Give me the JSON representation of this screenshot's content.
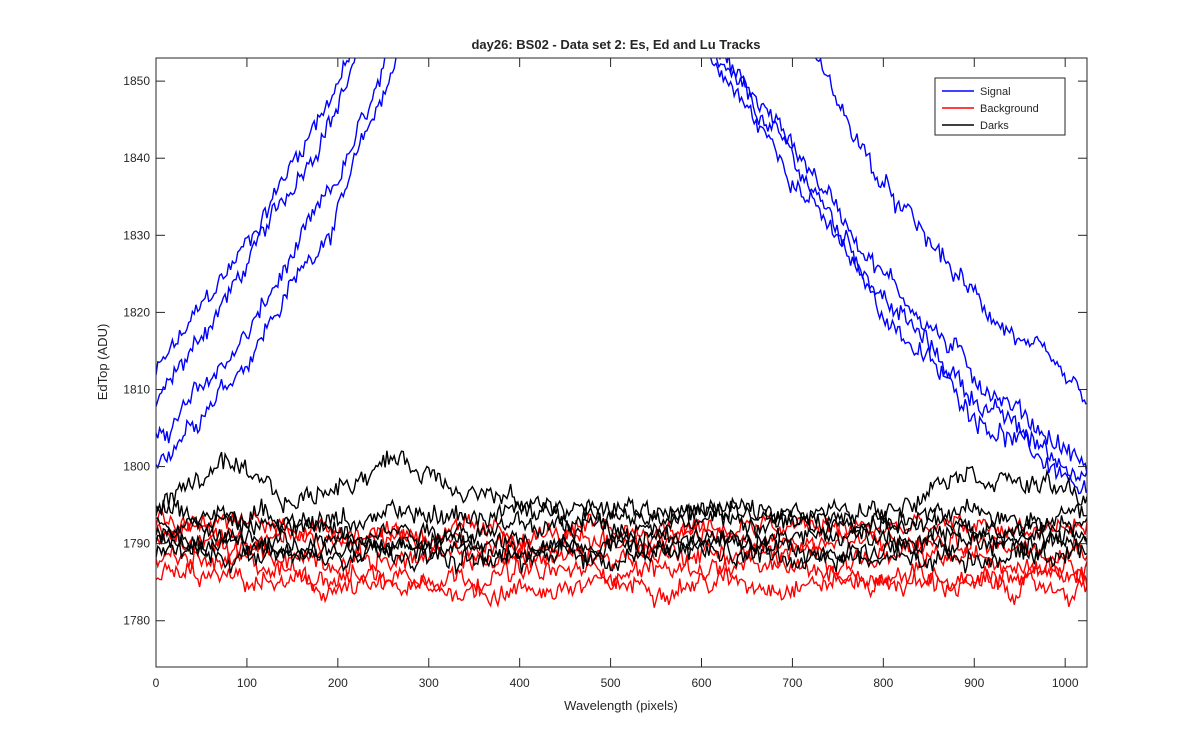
{
  "chart_data": {
    "type": "line",
    "title": "day26: BS02 - Data set 2: Es, Ed and Lu Tracks",
    "xlabel": "Wavelength (pixels)",
    "ylabel": "EdTop (ADU)",
    "xlim": [
      0,
      1024
    ],
    "ylim": [
      1774,
      1853
    ],
    "xticks": [
      0,
      100,
      200,
      300,
      400,
      500,
      600,
      700,
      800,
      900,
      1000
    ],
    "yticks": [
      1780,
      1790,
      1800,
      1810,
      1820,
      1830,
      1840,
      1850
    ],
    "grid": false,
    "legend_position": "top-right",
    "legend": [
      {
        "name": "Signal",
        "color": "#0000ff"
      },
      {
        "name": "Background",
        "color": "#ff0000"
      },
      {
        "name": "Darks",
        "color": "#000000"
      }
    ],
    "series": [
      {
        "group": "Signal",
        "color": "#0000ff",
        "x": [
          0,
          100,
          200,
          215
        ],
        "y": [
          1812,
          1829,
          1850,
          1853
        ]
      },
      {
        "group": "Signal",
        "color": "#0000ff",
        "x": [
          0,
          100,
          200,
          220
        ],
        "y": [
          1808,
          1826,
          1847,
          1853
        ]
      },
      {
        "group": "Signal",
        "color": "#0000ff",
        "x": [
          0,
          100,
          200,
          260
        ],
        "y": [
          1803,
          1817,
          1837,
          1853
        ]
      },
      {
        "group": "Signal",
        "color": "#0000ff",
        "x": [
          0,
          100,
          200,
          265
        ],
        "y": [
          1801,
          1814,
          1833,
          1853
        ]
      },
      {
        "group": "Signal",
        "color": "#0000ff",
        "x": [
          610,
          700,
          800,
          900,
          1024
        ],
        "y": [
          1853,
          1838,
          1820,
          1807,
          1797
        ]
      },
      {
        "group": "Signal",
        "color": "#0000ff",
        "x": [
          615,
          700,
          800,
          900,
          1024
        ],
        "y": [
          1853,
          1840,
          1822,
          1809,
          1798
        ]
      },
      {
        "group": "Signal",
        "color": "#0000ff",
        "x": [
          620,
          700,
          800,
          900,
          1024
        ],
        "y": [
          1853,
          1842,
          1825,
          1812,
          1800
        ]
      },
      {
        "group": "Signal",
        "color": "#0000ff",
        "x": [
          725,
          800,
          900,
          1024
        ],
        "y": [
          1853,
          1836,
          1822,
          1808
        ]
      },
      {
        "group": "Background",
        "color": "#ff0000",
        "x": [
          0,
          200,
          400,
          600,
          800,
          1024
        ],
        "y": [
          1786,
          1784,
          1784,
          1785,
          1785,
          1784
        ]
      },
      {
        "group": "Background",
        "color": "#ff0000",
        "x": [
          0,
          200,
          400,
          600,
          800,
          1024
        ],
        "y": [
          1788,
          1786,
          1786,
          1787,
          1786,
          1786
        ]
      },
      {
        "group": "Background",
        "color": "#ff0000",
        "x": [
          0,
          200,
          400,
          600,
          800,
          1024
        ],
        "y": [
          1790,
          1788,
          1788,
          1789,
          1788,
          1788
        ]
      },
      {
        "group": "Background",
        "color": "#ff0000",
        "x": [
          0,
          200,
          400,
          600,
          800,
          1024
        ],
        "y": [
          1792,
          1790,
          1790,
          1791,
          1790,
          1790
        ]
      },
      {
        "group": "Background",
        "color": "#ff0000",
        "x": [
          0,
          200,
          400,
          600,
          800,
          1024
        ],
        "y": [
          1793,
          1792,
          1791,
          1792,
          1792,
          1792
        ]
      },
      {
        "group": "Darks",
        "color": "#000000",
        "x": [
          0,
          70,
          150,
          260,
          400,
          600,
          800,
          880,
          1024
        ],
        "y": [
          1795,
          1800,
          1795,
          1801,
          1795,
          1794,
          1794,
          1800,
          1796
        ]
      },
      {
        "group": "Darks",
        "color": "#000000",
        "x": [
          0,
          200,
          400,
          600,
          800,
          1024
        ],
        "y": [
          1794,
          1793,
          1794,
          1794,
          1793,
          1794
        ]
      },
      {
        "group": "Darks",
        "color": "#000000",
        "x": [
          0,
          200,
          400,
          600,
          800,
          1024
        ],
        "y": [
          1793,
          1792,
          1792,
          1793,
          1792,
          1793
        ]
      },
      {
        "group": "Darks",
        "color": "#000000",
        "x": [
          0,
          200,
          400,
          600,
          800,
          1024
        ],
        "y": [
          1791,
          1790,
          1790,
          1791,
          1791,
          1791
        ]
      },
      {
        "group": "Darks",
        "color": "#000000",
        "x": [
          0,
          200,
          400,
          600,
          800,
          1024
        ],
        "y": [
          1790,
          1789,
          1789,
          1790,
          1789,
          1790
        ]
      },
      {
        "group": "Darks",
        "color": "#000000",
        "x": [
          0,
          200,
          400,
          600,
          800,
          1024
        ],
        "y": [
          1789,
          1788,
          1788,
          1789,
          1788,
          1789
        ]
      }
    ]
  }
}
